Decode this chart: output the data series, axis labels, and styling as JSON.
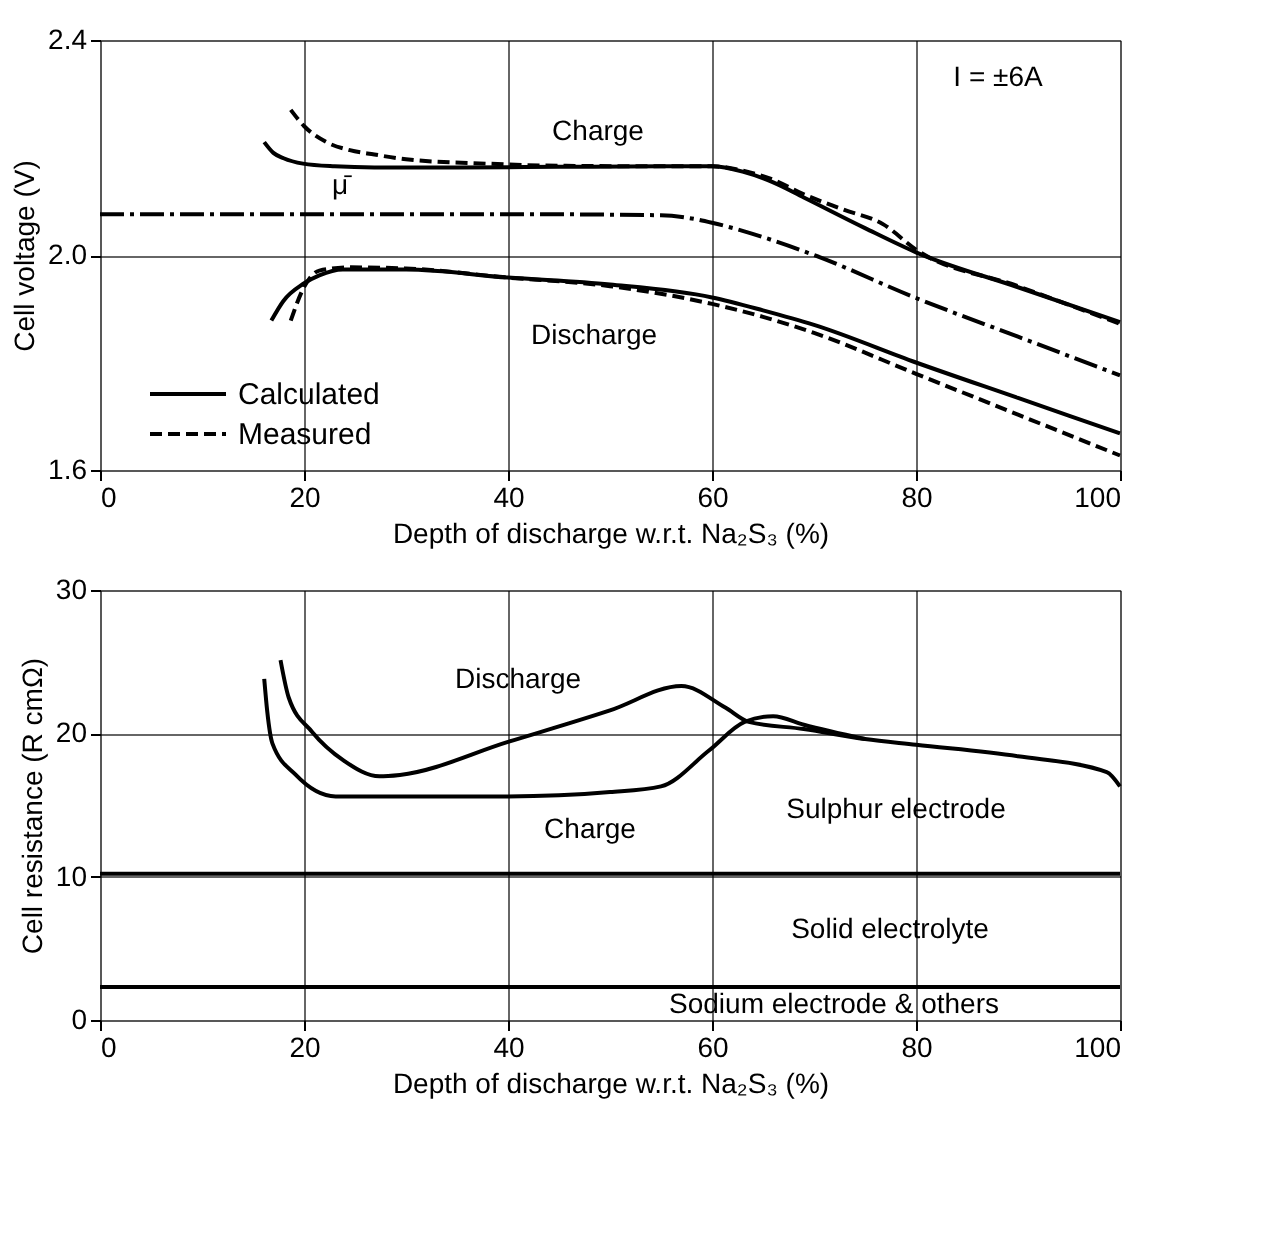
{
  "chart_data": [
    {
      "type": "line",
      "xlabel": "Depth of discharge w.r.t. Na₂S₃ (%)",
      "ylabel": "Cell voltage (V)",
      "xlim": [
        0,
        100
      ],
      "xticks": [
        0,
        20,
        40,
        60,
        80,
        100
      ],
      "ylim": [
        1.6,
        2.4
      ],
      "yticks": [
        1.6,
        {
          "value": 2.0,
          "label": "2.0"
        },
        2.4
      ],
      "grid": true,
      "legend": "bottom left",
      "series": [
        {
          "name": "Calculated",
          "color": "#000000",
          "line_style": "solid",
          "x": [
            16.1,
            17,
            18,
            19.9,
            23,
            26.9,
            35,
            45,
            55,
            60,
            63,
            66,
            69,
            75,
            80,
            90,
            100
          ],
          "values": [
            2.21,
            2.19,
            2.18,
            2.17,
            2.165,
            2.163,
            2.163,
            2.164,
            2.165,
            2.165,
            2.155,
            2.135,
            2.107,
            2.05,
            2.005,
            1.94,
            1.875
          ]
        },
        {
          "name": "Measured",
          "color": "#000000",
          "line_style": "dashed",
          "x": [
            18.7,
            20,
            22.2,
            24.5,
            26.9,
            30,
            37.8,
            45,
            55,
            60,
            63,
            66,
            69,
            72.8,
            76.8,
            80,
            90,
            100
          ],
          "values": [
            2.27,
            2.24,
            2.21,
            2.195,
            2.187,
            2.178,
            2.17,
            2.166,
            2.165,
            2.165,
            2.157,
            2.14,
            2.113,
            2.085,
            2.057,
            2.01,
            1.942,
            1.872
          ]
        },
        {
          "color": "#000000",
          "line_style": "dashdot",
          "x": [
            0,
            20,
            40,
            55,
            58,
            60,
            63,
            66,
            70,
            80,
            90,
            100
          ],
          "values": [
            2.076,
            2.076,
            2.076,
            2.074,
            2.068,
            2.06,
            2.045,
            2.027,
            2.0,
            1.92,
            1.848,
            1.776
          ]
        },
        {
          "color": "#000000",
          "line_style": "solid",
          "x": [
            16.8,
            18,
            19.9,
            21.5,
            23.8,
            30,
            40,
            50,
            60,
            65,
            70,
            80,
            90,
            100
          ],
          "values": [
            1.878,
            1.915,
            1.946,
            1.962,
            1.973,
            1.973,
            1.958,
            1.945,
            1.921,
            1.897,
            1.87,
            1.8,
            1.734,
            1.668
          ]
        },
        {
          "color": "#000000",
          "line_style": "dashed",
          "x": [
            18.7,
            20,
            21.5,
            24.6,
            30,
            40,
            50,
            60,
            65,
            70,
            80,
            90,
            100
          ],
          "values": [
            1.878,
            1.94,
            1.971,
            1.977,
            1.975,
            1.958,
            1.942,
            1.909,
            1.885,
            1.855,
            1.779,
            1.703,
            1.627
          ]
        }
      ],
      "annotations": [
        "Charge",
        "μ̄",
        "Discharge",
        "I = ±6A"
      ]
    },
    {
      "type": "line",
      "xlabel": "Depth of discharge w.r.t. Na₂S₃ (%)",
      "ylabel": "Cell resistance  (R cmΩ)",
      "xlim": [
        0,
        100
      ],
      "xticks": [
        0,
        20,
        40,
        60,
        80,
        100
      ],
      "ylim": [
        0,
        30
      ],
      "yticks": [
        0,
        10,
        20,
        30
      ],
      "grid": true,
      "series": [
        {
          "color": "#000000",
          "line_style": "solid",
          "x": [
            17.7,
            18.5,
            20.8,
            23.9,
            27.4,
            29.4,
            40,
            50,
            57,
            61.3,
            63.6,
            69,
            75,
            80,
            90,
            98.7,
            100
          ],
          "values": [
            25.1,
            22.5,
            20.1,
            18.1,
            17.0,
            17.1,
            19.4,
            21.6,
            23.3,
            21.8,
            20.8,
            20.3,
            19.6,
            19.2,
            18.4,
            17.3,
            16.3
          ]
        },
        {
          "color": "#000000",
          "line_style": "solid",
          "x": [
            16.1,
            16.4,
            16.9,
            19.2,
            23.1,
            30,
            40,
            50,
            55,
            59.7,
            63.2,
            66,
            69,
            75
          ],
          "values": [
            23.8,
            21.5,
            19.3,
            17.1,
            15.6,
            15.6,
            15.6,
            15.9,
            16.3,
            18.8,
            20.8,
            21.2,
            20.6,
            19.6
          ]
        }
      ],
      "ref_lines": [
        {
          "axis": "y",
          "value": 10.2,
          "color": "#000000"
        },
        {
          "axis": "y",
          "value": 2.3,
          "color": "#000000"
        }
      ],
      "annotations": [
        "Discharge",
        "Charge",
        "Sulphur electrode",
        "Solid electrolyte",
        "Sodium electrode & others"
      ]
    }
  ]
}
